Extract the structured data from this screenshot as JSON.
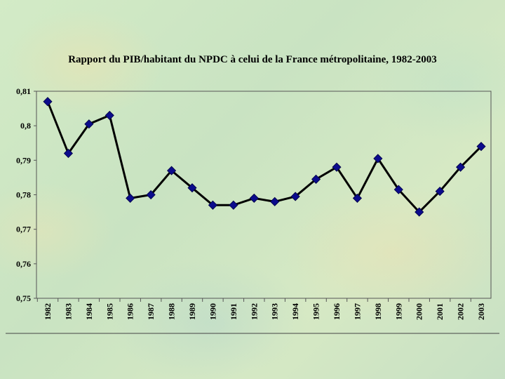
{
  "chart_data": {
    "type": "line",
    "title": "Rapport du PIB/habitant du NPDC à celui de la France métropolitaine, 1982-2003",
    "xlabel": "",
    "ylabel": "",
    "ylim": [
      0.75,
      0.81
    ],
    "ytick_labels": [
      "0,81",
      "0,8",
      "0,79",
      "0,78",
      "0,77",
      "0,76",
      "0,75"
    ],
    "ytick_values": [
      0.81,
      0.8,
      0.79,
      0.78,
      0.77,
      0.76,
      0.75
    ],
    "grid": false,
    "legend": "none",
    "x": [
      "1982",
      "1983",
      "1984",
      "1985",
      "1986",
      "1987",
      "1988",
      "1989",
      "1990",
      "1991",
      "1992",
      "1993",
      "1994",
      "1995",
      "1996",
      "1997",
      "1998",
      "1999",
      "2000",
      "2001",
      "2002",
      "2003"
    ],
    "series": [
      {
        "values": [
          0.807,
          0.792,
          0.8005,
          0.803,
          0.779,
          0.78,
          0.787,
          0.782,
          0.777,
          0.777,
          0.779,
          0.778,
          0.7795,
          0.7845,
          0.788,
          0.779,
          0.7905,
          0.7815,
          0.775,
          0.781,
          0.788,
          0.794
        ],
        "color": "#0b0b8c",
        "line_color": "#000000"
      }
    ]
  }
}
